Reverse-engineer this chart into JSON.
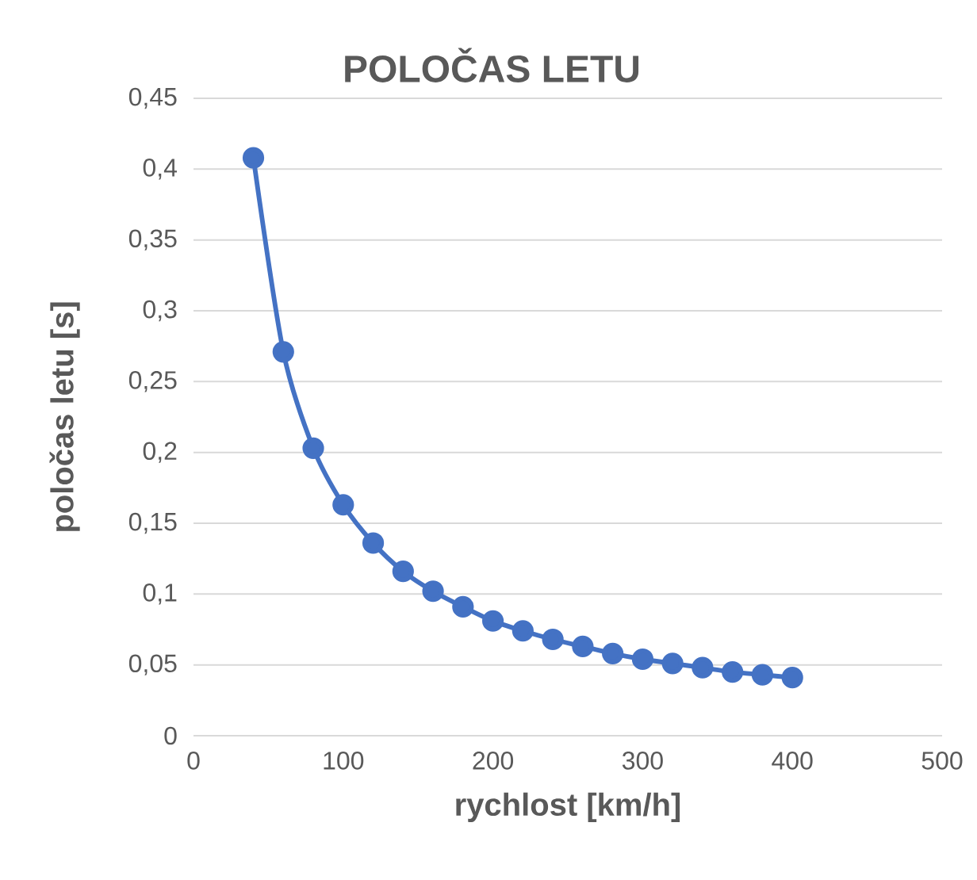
{
  "chart_data": {
    "type": "line",
    "title": "POLOČAS LETU",
    "xlabel": "rychlost [km/h]",
    "ylabel": "poločas letu [s]",
    "x": [
      40,
      60,
      80,
      100,
      120,
      140,
      160,
      180,
      200,
      220,
      240,
      260,
      280,
      300,
      320,
      340,
      360,
      380,
      400
    ],
    "series": [
      {
        "color": "#4472c4",
        "values": [
          0.408,
          0.271,
          0.203,
          0.163,
          0.136,
          0.116,
          0.102,
          0.091,
          0.081,
          0.074,
          0.068,
          0.063,
          0.058,
          0.054,
          0.051,
          0.048,
          0.045,
          0.043,
          0.041
        ]
      }
    ],
    "xlim": [
      0,
      500
    ],
    "xticks": [
      0,
      100,
      200,
      300,
      400,
      500
    ],
    "ylim": [
      0,
      0.45
    ],
    "yticks": [
      0,
      {
        "value": 0.05,
        "label": "0,05"
      },
      {
        "value": 0.1,
        "label": "0,1"
      },
      {
        "value": 0.15,
        "label": "0,15"
      },
      {
        "value": 0.2,
        "label": "0,2"
      },
      {
        "value": 0.25,
        "label": "0,25"
      },
      {
        "value": 0.3,
        "label": "0,3"
      },
      {
        "value": 0.35,
        "label": "0,35"
      },
      {
        "value": 0.4,
        "label": "0,4"
      },
      {
        "value": 0.45,
        "label": "0,45"
      }
    ],
    "grid": "y",
    "marker": "circle",
    "line_style": "solid"
  }
}
